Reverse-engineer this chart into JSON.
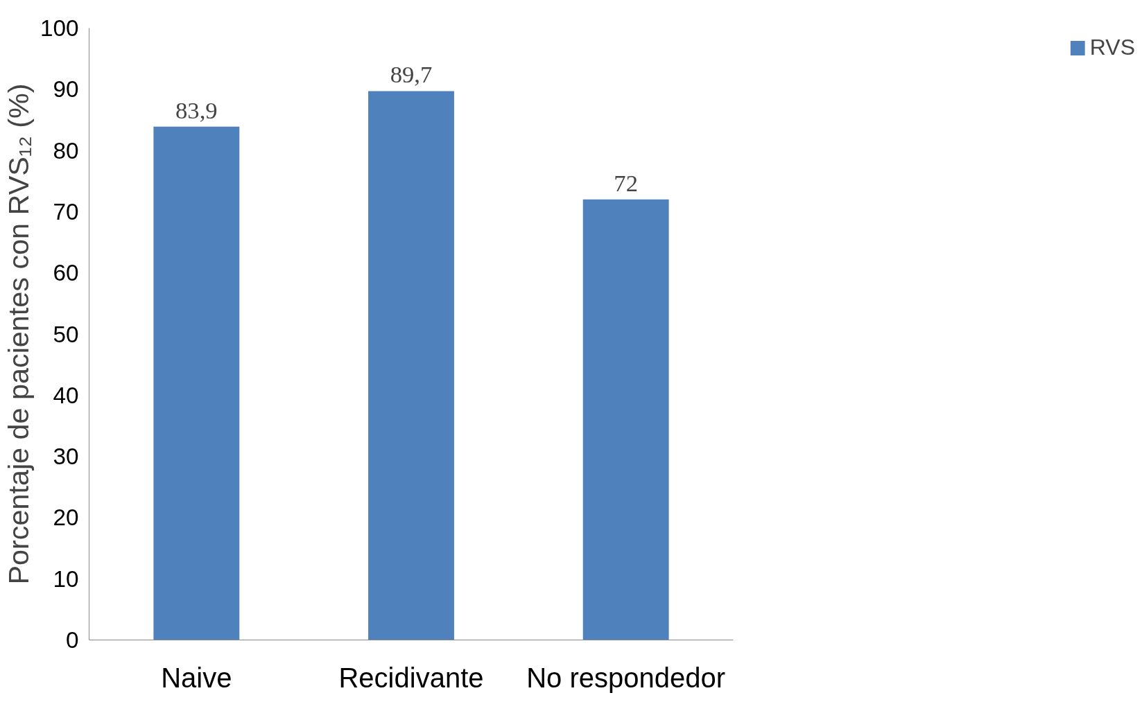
{
  "chart_data": {
    "type": "bar",
    "ylabel": "Porcentaje de pacientes con RVS₁₂ (%)",
    "categories": [
      "Naive",
      "Recidivante",
      "No respondedor"
    ],
    "series": [
      {
        "name": "RVS",
        "color": "#4f81bd",
        "values": [
          83.9,
          89.7,
          72
        ],
        "value_labels": [
          "83,9",
          "89,7",
          "72"
        ]
      }
    ],
    "ylim": [
      0,
      100
    ],
    "yticks": [
      0,
      10,
      20,
      30,
      40,
      50,
      60,
      70,
      80,
      90,
      100
    ],
    "grid": false,
    "legend": "right"
  }
}
